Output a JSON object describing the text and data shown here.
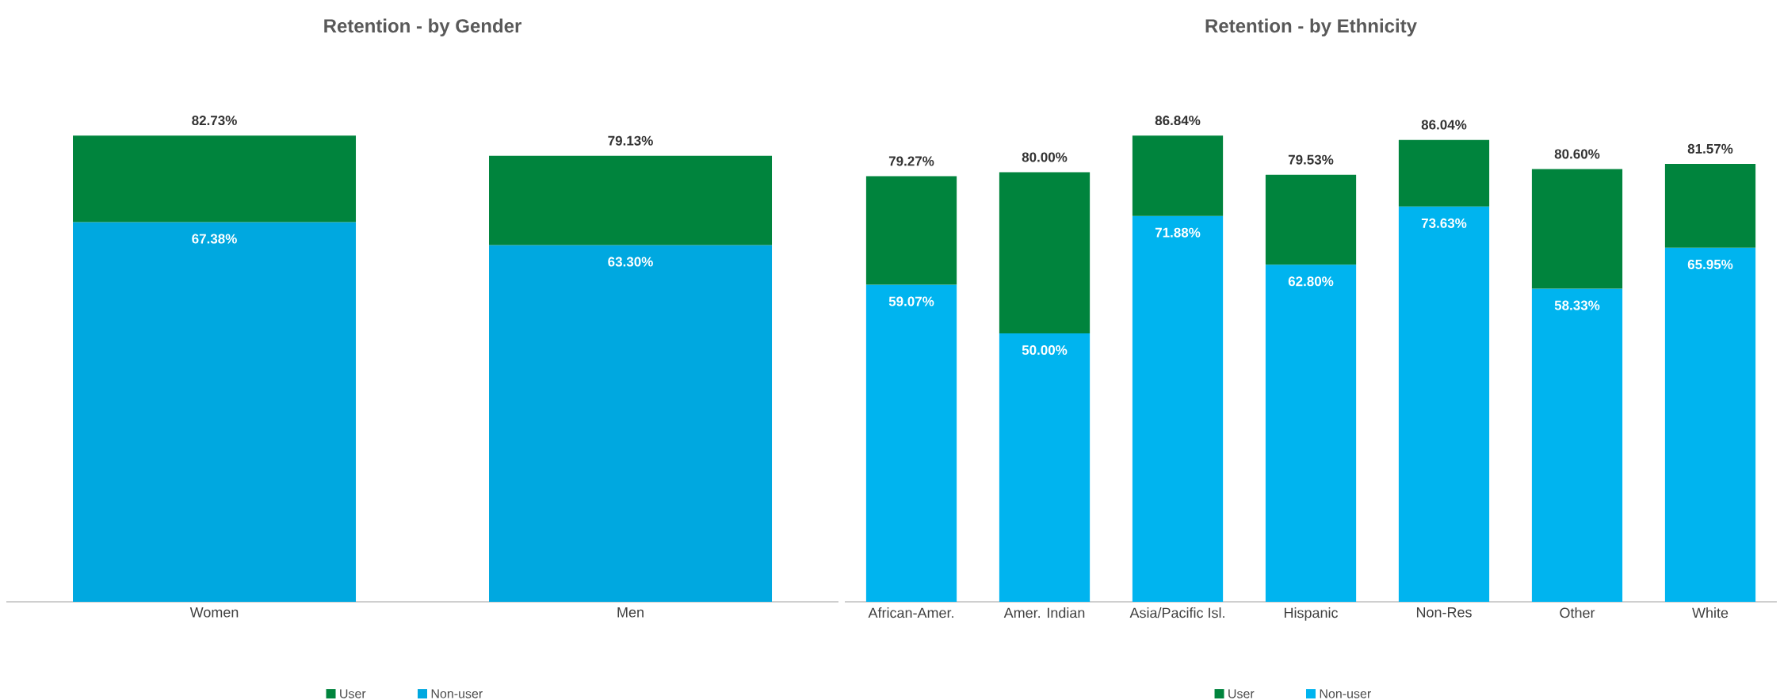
{
  "chart_data": [
    {
      "type": "bar",
      "title": "Retention - by Gender",
      "categories": [
        "Women",
        "Men"
      ],
      "stacked": true,
      "series": [
        {
          "name": "Non-user",
          "color": "#00a8e0",
          "values": [
            67.38,
            63.3
          ],
          "value_labels": [
            "67.38%",
            "63.30%"
          ]
        },
        {
          "name": "User",
          "color": "#00843d",
          "values": [
            15.35,
            15.83
          ]
        }
      ],
      "totals": [
        "82.73%",
        "79.13%"
      ],
      "legend": "bottom",
      "tick_labels": "x"
    },
    {
      "type": "bar",
      "title": "Retention - by Ethnicity",
      "categories": [
        "African-Amer.",
        "Amer. Indian",
        "Asia/Pacific Isl.",
        "Hispanic",
        "Non-Res",
        "Other",
        "White"
      ],
      "stacked": true,
      "series": [
        {
          "name": "Non-user",
          "color": "#00b4ef",
          "values": [
            59.07,
            50.0,
            71.88,
            62.8,
            73.63,
            58.33,
            65.95
          ],
          "value_labels": [
            "59.07%",
            "50.00%",
            "71.88%",
            "62.80%",
            "73.63%",
            "58.33%",
            "65.95%"
          ]
        },
        {
          "name": "User",
          "color": "#00843d",
          "values": [
            20.2,
            30.0,
            14.96,
            16.73,
            12.41,
            22.27,
            15.62
          ]
        }
      ],
      "totals": [
        "79.27%",
        "80.00%",
        "86.84%",
        "79.53%",
        "86.04%",
        "80.60%",
        "81.57%"
      ],
      "legend": "bottom",
      "tick_labels": "x"
    }
  ]
}
